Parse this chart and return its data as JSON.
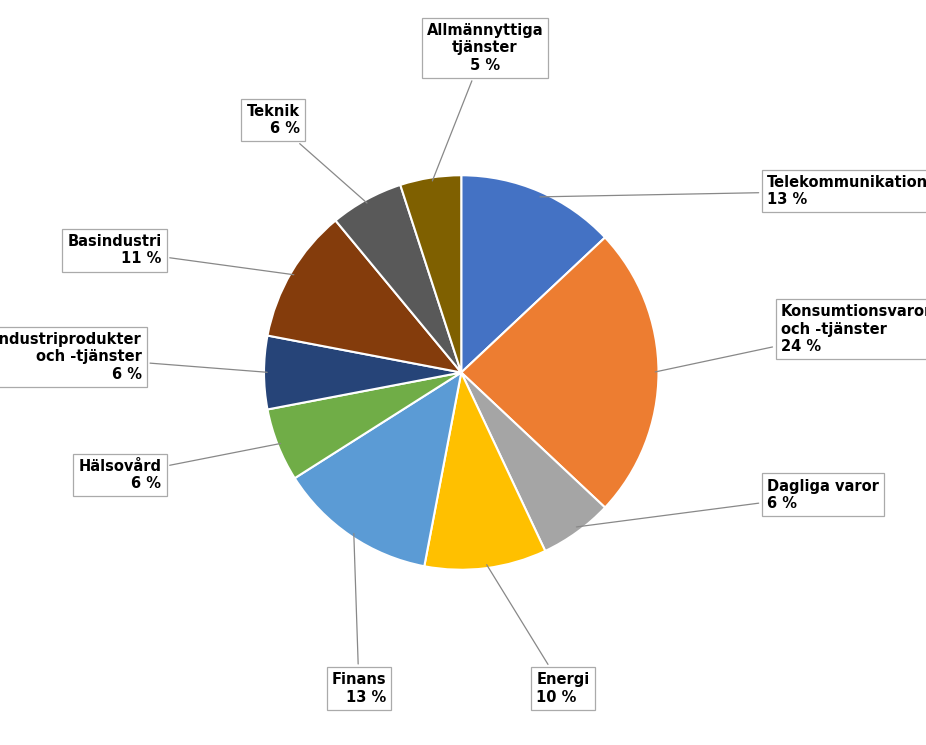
{
  "labels": [
    "Telekommunikation",
    "Konsumtionsvaror\noch -tjänster",
    "Dagliga varor",
    "Energi",
    "Finans",
    "Hälsovård",
    "Industriprodukter\noch -tjänster",
    "Basindustri",
    "Teknik",
    "Allmännyttiga\ntjänster"
  ],
  "pct_labels": [
    "13 %",
    "24 %",
    "6 %",
    "10 %",
    "13 %",
    "6 %",
    "6 %",
    "11 %",
    "6 %",
    "5 %"
  ],
  "values": [
    13,
    24,
    6,
    10,
    13,
    6,
    6,
    11,
    6,
    5
  ],
  "colors": [
    "#4472C4",
    "#ED7D31",
    "#A5A5A5",
    "#FFC000",
    "#5B9BD5",
    "#70AD47",
    "#264478",
    "#843C0C",
    "#595959",
    "#7F6000"
  ],
  "startangle": 90,
  "background_color": "#FFFFFF",
  "label_positions": [
    [
      1.55,
      0.92,
      "left",
      "center"
    ],
    [
      1.62,
      0.22,
      "left",
      "center"
    ],
    [
      1.55,
      -0.62,
      "left",
      "center"
    ],
    [
      0.38,
      -1.52,
      "left",
      "top"
    ],
    [
      -0.38,
      -1.52,
      "right",
      "top"
    ],
    [
      -1.52,
      -0.52,
      "right",
      "center"
    ],
    [
      -1.62,
      0.08,
      "right",
      "center"
    ],
    [
      -1.52,
      0.62,
      "right",
      "center"
    ],
    [
      -0.82,
      1.28,
      "right",
      "center"
    ],
    [
      0.12,
      1.52,
      "center",
      "bottom"
    ]
  ]
}
